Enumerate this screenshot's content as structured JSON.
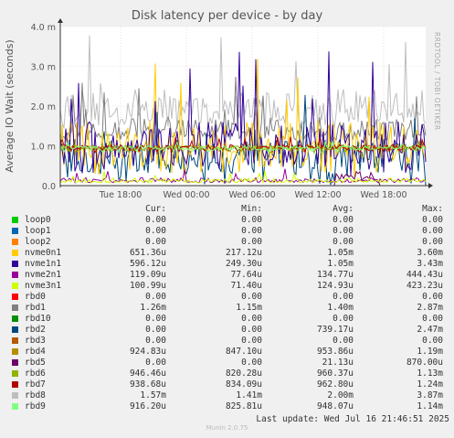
{
  "chart_data": {
    "type": "line",
    "title": "Disk latency per device - by day",
    "ylabel": "Average IO Wait (seconds)",
    "y_ticks": [
      "0.0",
      "1.0 m",
      "2.0 m",
      "3.0 m",
      "4.0 m"
    ],
    "ylim": [
      0,
      0.004
    ],
    "x_ticks": [
      "Tue 18:00",
      "Wed 00:00",
      "Wed 06:00",
      "Wed 12:00",
      "Wed 18:00"
    ],
    "grid": true,
    "side_credit": "RRDTOOL / TOBI OETIKER",
    "columns": [
      "Cur:",
      "Min:",
      "Avg:",
      "Max:"
    ],
    "series": [
      {
        "name": "loop0",
        "color": "#00cc00",
        "cur": "0.00",
        "min": "0.00",
        "avg": "0.00",
        "max": "0.00"
      },
      {
        "name": "loop1",
        "color": "#0066b3",
        "cur": "0.00",
        "min": "0.00",
        "avg": "0.00",
        "max": "0.00"
      },
      {
        "name": "loop2",
        "color": "#ff8000",
        "cur": "0.00",
        "min": "0.00",
        "avg": "0.00",
        "max": "0.00"
      },
      {
        "name": "nvme0n1",
        "color": "#ffcc00",
        "cur": "651.36u",
        "min": "217.12u",
        "avg": "1.05m",
        "max": "3.60m"
      },
      {
        "name": "nvme1n1",
        "color": "#330099",
        "cur": "596.12u",
        "min": "249.30u",
        "avg": "1.05m",
        "max": "3.43m"
      },
      {
        "name": "nvme2n1",
        "color": "#990099",
        "cur": "119.09u",
        "min": "77.64u",
        "avg": "134.77u",
        "max": "444.43u"
      },
      {
        "name": "nvme3n1",
        "color": "#ccff00",
        "cur": "100.99u",
        "min": "71.40u",
        "avg": "124.93u",
        "max": "423.23u"
      },
      {
        "name": "rbd0",
        "color": "#ff0000",
        "cur": "0.00",
        "min": "0.00",
        "avg": "0.00",
        "max": "0.00"
      },
      {
        "name": "rbd1",
        "color": "#808080",
        "cur": "1.26m",
        "min": "1.15m",
        "avg": "1.40m",
        "max": "2.87m"
      },
      {
        "name": "rbd10",
        "color": "#008f00",
        "cur": "0.00",
        "min": "0.00",
        "avg": "0.00",
        "max": "0.00"
      },
      {
        "name": "rbd2",
        "color": "#00487d",
        "cur": "0.00",
        "min": "0.00",
        "avg": "739.17u",
        "max": "2.47m"
      },
      {
        "name": "rbd3",
        "color": "#b35a00",
        "cur": "0.00",
        "min": "0.00",
        "avg": "0.00",
        "max": "0.00"
      },
      {
        "name": "rbd4",
        "color": "#b38f00",
        "cur": "924.83u",
        "min": "847.10u",
        "avg": "953.86u",
        "max": "1.19m"
      },
      {
        "name": "rbd5",
        "color": "#6b006b",
        "cur": "0.00",
        "min": "0.00",
        "avg": "21.13u",
        "max": "870.00u"
      },
      {
        "name": "rbd6",
        "color": "#8fb300",
        "cur": "946.46u",
        "min": "820.28u",
        "avg": "960.37u",
        "max": "1.13m"
      },
      {
        "name": "rbd7",
        "color": "#b30000",
        "cur": "938.68u",
        "min": "834.09u",
        "avg": "962.80u",
        "max": "1.24m"
      },
      {
        "name": "rbd8",
        "color": "#bebebe",
        "cur": "1.57m",
        "min": "1.41m",
        "avg": "2.00m",
        "max": "3.87m"
      },
      {
        "name": "rbd9",
        "color": "#80ff80",
        "cur": "916.20u",
        "min": "825.81u",
        "avg": "948.07u",
        "max": "1.14m"
      }
    ]
  },
  "last_update": "Last update: Wed Jul 16 21:46:51 2025",
  "footer": "Munin 2.0.75"
}
